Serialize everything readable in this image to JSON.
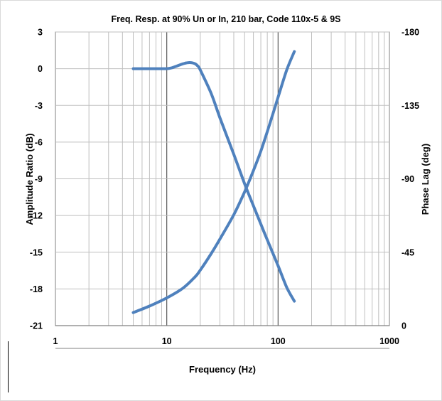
{
  "chart_data": {
    "type": "line",
    "title": "Freq. Resp. at 90% Un or In, 210 bar, Code 110x-5 & 9S",
    "xlabel": "Frequency (Hz)",
    "ylabel": "Amplitude Ratio (dB)",
    "y2label": "Phase Lag (deg)",
    "xscale": "log",
    "xlim": [
      1,
      1000
    ],
    "ylim": [
      -21,
      3
    ],
    "y2lim": [
      0,
      -180
    ],
    "x_tick_labels": [
      "1",
      "10",
      "100",
      "1000"
    ],
    "y_tick_labels": [
      "3",
      "0",
      "-3",
      "-6",
      "-9",
      "-12",
      "-15",
      "-18",
      "-21"
    ],
    "y2_tick_labels": [
      "-180",
      "-135",
      "-90",
      "-45",
      "0"
    ],
    "grid": true,
    "legend": "none",
    "series": [
      {
        "axis": "left",
        "color": "#4f81bd",
        "x": [
          5,
          6,
          7,
          8,
          9,
          10,
          11,
          12,
          13,
          14,
          15,
          16,
          17,
          18,
          19,
          20,
          25,
          30,
          40,
          50,
          60,
          70,
          80,
          100,
          120,
          140
        ],
        "y": [
          0,
          0,
          0,
          0,
          0,
          0,
          0.06,
          0.18,
          0.3,
          0.4,
          0.47,
          0.5,
          0.48,
          0.4,
          0.22,
          -0.1,
          -2,
          -4,
          -7,
          -9.4,
          -11.2,
          -12.7,
          -14,
          -16.1,
          -17.9,
          -19
        ]
      },
      {
        "axis": "right",
        "color": "#4f81bd",
        "x": [
          5,
          7,
          10,
          14,
          18,
          20,
          25,
          30,
          40,
          50,
          60,
          70,
          80,
          90,
          100,
          120,
          140
        ],
        "y": [
          -8,
          -12,
          -17,
          -23,
          -30,
          -34,
          -44,
          -53,
          -68,
          -82,
          -95,
          -107,
          -119,
          -130,
          -140,
          -157,
          -168
        ]
      }
    ]
  }
}
